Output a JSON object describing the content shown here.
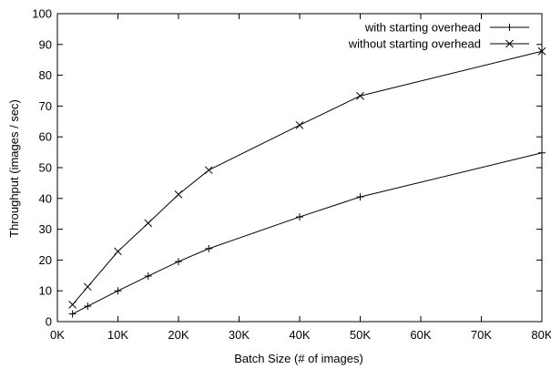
{
  "chart_data": {
    "type": "line",
    "title": "",
    "xlabel": "Batch Size (# of images)",
    "ylabel": "Throughput (images / sec)",
    "xlim": [
      0,
      80000
    ],
    "ylim": [
      0,
      100
    ],
    "x_ticks": [
      0,
      10000,
      20000,
      30000,
      40000,
      50000,
      60000,
      70000,
      80000
    ],
    "x_tick_labels": [
      "0K",
      "10K",
      "20K",
      "30K",
      "40K",
      "50K",
      "60K",
      "70K",
      "80K"
    ],
    "y_ticks": [
      0,
      10,
      20,
      30,
      40,
      50,
      60,
      70,
      80,
      90,
      100
    ],
    "y_tick_labels": [
      "0",
      "10",
      "20",
      "30",
      "40",
      "50",
      "60",
      "70",
      "80",
      "90",
      "100"
    ],
    "grid": false,
    "legend_position": "top-right",
    "series": [
      {
        "name": "with starting overhead",
        "marker": "plus",
        "color": "#000000",
        "x": [
          2500,
          5000,
          10000,
          15000,
          20000,
          25000,
          40000,
          50000,
          80000
        ],
        "y": [
          2.5,
          5,
          10,
          14.8,
          19.5,
          23.7,
          34,
          40.5,
          54.8
        ]
      },
      {
        "name": "without starting overhead",
        "marker": "cross",
        "color": "#000000",
        "x": [
          2500,
          5000,
          10000,
          15000,
          20000,
          25000,
          40000,
          50000,
          80000
        ],
        "y": [
          5.5,
          11.3,
          22.8,
          32,
          41.3,
          49.2,
          63.8,
          73.3,
          87.8
        ]
      }
    ]
  }
}
